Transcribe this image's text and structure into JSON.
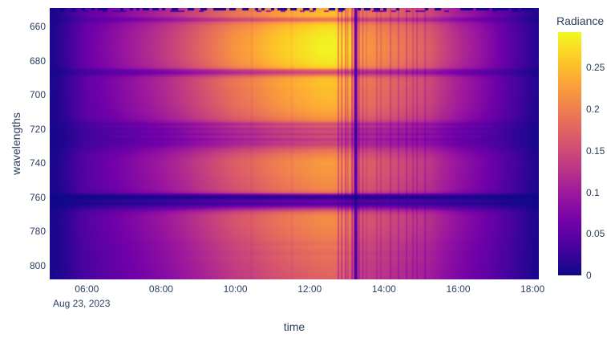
{
  "figure": {
    "background": "#ffffff",
    "font_color": "#2a3f5f"
  },
  "chart_data": {
    "type": "heatmap",
    "title": "",
    "xlabel": "time",
    "ylabel": "wavelengths",
    "x_date": "Aug 23, 2023",
    "z_label": "Radiance",
    "zmin": 0,
    "zmax": 0.293,
    "x_range_hours": [
      5.0,
      18.17
    ],
    "y_range_nm": [
      649,
      808
    ],
    "x_ticks": [
      {
        "hour": 6,
        "label": "06:00"
      },
      {
        "hour": 8,
        "label": "08:00"
      },
      {
        "hour": 10,
        "label": "10:00"
      },
      {
        "hour": 12,
        "label": "12:00"
      },
      {
        "hour": 14,
        "label": "14:00"
      },
      {
        "hour": 16,
        "label": "16:00"
      },
      {
        "hour": 18,
        "label": "18:00"
      }
    ],
    "y_ticks": [
      {
        "nm": 660,
        "label": "660"
      },
      {
        "nm": 680,
        "label": "680"
      },
      {
        "nm": 700,
        "label": "700"
      },
      {
        "nm": 720,
        "label": "720"
      },
      {
        "nm": 740,
        "label": "740"
      },
      {
        "nm": 760,
        "label": "760"
      },
      {
        "nm": 780,
        "label": "780"
      },
      {
        "nm": 800,
        "label": "800"
      }
    ],
    "colorbar_ticks": [
      {
        "value": 0,
        "label": "0"
      },
      {
        "value": 0.05,
        "label": "0.05"
      },
      {
        "value": 0.1,
        "label": "0.1"
      },
      {
        "value": 0.15,
        "label": "0.15"
      },
      {
        "value": 0.2,
        "label": "0.2"
      },
      {
        "value": 0.25,
        "label": "0.25"
      }
    ],
    "colorscale": [
      [
        0.0,
        "#0d0887"
      ],
      [
        0.1111,
        "#46039f"
      ],
      [
        0.2222,
        "#7201a8"
      ],
      [
        0.3333,
        "#9c179e"
      ],
      [
        0.4444,
        "#bd3786"
      ],
      [
        0.5556,
        "#d8576b"
      ],
      [
        0.6667,
        "#ed7953"
      ],
      [
        0.7778,
        "#fb9f3a"
      ],
      [
        0.8889,
        "#fdca26"
      ],
      [
        1.0,
        "#f0f921"
      ]
    ],
    "model": "z(t,wl) = diurnal_factor(t) * peak_spectrum(wl); narrow vertical dips are short drops in diurnal_factor, horizontal dark bands are absorption dips in peak_spectrum",
    "diurnal_factor": [
      [
        5.0,
        0.03
      ],
      [
        5.2,
        0.05
      ],
      [
        5.5,
        0.1
      ],
      [
        5.8,
        0.17
      ],
      [
        6.0,
        0.21
      ],
      [
        6.5,
        0.27
      ],
      [
        7.0,
        0.33
      ],
      [
        7.5,
        0.39
      ],
      [
        8.0,
        0.45
      ],
      [
        8.5,
        0.52
      ],
      [
        9.0,
        0.6
      ],
      [
        9.5,
        0.68
      ],
      [
        10.0,
        0.76
      ],
      [
        10.4,
        0.8
      ],
      [
        10.44,
        0.755
      ],
      [
        10.48,
        0.805
      ],
      [
        10.8,
        0.85
      ],
      [
        11.0,
        0.88
      ],
      [
        11.48,
        0.93
      ],
      [
        11.52,
        0.88
      ],
      [
        11.56,
        0.935
      ],
      [
        11.9,
        0.96
      ],
      [
        12.2,
        0.99
      ],
      [
        12.45,
        1.0
      ],
      [
        12.6,
        1.0
      ],
      [
        12.74,
        0.99
      ],
      [
        12.77,
        0.6
      ],
      [
        12.8,
        0.98
      ],
      [
        12.83,
        0.97
      ],
      [
        12.86,
        0.65
      ],
      [
        12.9,
        0.97
      ],
      [
        12.94,
        0.96
      ],
      [
        12.97,
        0.55
      ],
      [
        13.0,
        0.955
      ],
      [
        13.03,
        0.7
      ],
      [
        13.06,
        0.95
      ],
      [
        13.11,
        0.94
      ],
      [
        13.14,
        0.45
      ],
      [
        13.17,
        0.9
      ],
      [
        13.2,
        0.5
      ],
      [
        13.23,
        0.1
      ],
      [
        13.27,
        0.3
      ],
      [
        13.3,
        0.75
      ],
      [
        13.33,
        0.5
      ],
      [
        13.36,
        0.78
      ],
      [
        13.4,
        0.77
      ],
      [
        13.43,
        0.6
      ],
      [
        13.46,
        0.765
      ],
      [
        13.5,
        0.76
      ],
      [
        13.53,
        0.64
      ],
      [
        13.56,
        0.755
      ],
      [
        13.65,
        0.75
      ],
      [
        13.78,
        0.74
      ],
      [
        13.81,
        0.58
      ],
      [
        13.84,
        0.735
      ],
      [
        13.89,
        0.73
      ],
      [
        13.92,
        0.6
      ],
      [
        13.95,
        0.725
      ],
      [
        14.05,
        0.715
      ],
      [
        14.15,
        0.705
      ],
      [
        14.18,
        0.52
      ],
      [
        14.21,
        0.7
      ],
      [
        14.3,
        0.69
      ],
      [
        14.36,
        0.685
      ],
      [
        14.39,
        0.5
      ],
      [
        14.42,
        0.68
      ],
      [
        14.5,
        0.67
      ],
      [
        14.58,
        0.66
      ],
      [
        14.61,
        0.48
      ],
      [
        14.64,
        0.655
      ],
      [
        14.75,
        0.64
      ],
      [
        14.78,
        0.5
      ],
      [
        14.81,
        0.635
      ],
      [
        14.86,
        0.63
      ],
      [
        14.89,
        0.47
      ],
      [
        14.92,
        0.625
      ],
      [
        15.0,
        0.615
      ],
      [
        15.08,
        0.6
      ],
      [
        15.11,
        0.46
      ],
      [
        15.14,
        0.595
      ],
      [
        15.25,
        0.58
      ],
      [
        15.5,
        0.52
      ],
      [
        15.75,
        0.47
      ],
      [
        16.0,
        0.42
      ],
      [
        16.5,
        0.34
      ],
      [
        17.0,
        0.25
      ],
      [
        17.5,
        0.15
      ],
      [
        18.0,
        0.065
      ],
      [
        18.17,
        0.045
      ]
    ],
    "peak_spectrum": [
      [
        649,
        0.235
      ],
      [
        650.5,
        0.246
      ],
      [
        652.5,
        0.252
      ],
      [
        654,
        0.246
      ],
      [
        655,
        0.2
      ],
      [
        656.3,
        0.19
      ],
      [
        657.5,
        0.247
      ],
      [
        659,
        0.266
      ],
      [
        661,
        0.275
      ],
      [
        664,
        0.283
      ],
      [
        668,
        0.287
      ],
      [
        672,
        0.29
      ],
      [
        676,
        0.288
      ],
      [
        679,
        0.284
      ],
      [
        682,
        0.278
      ],
      [
        684,
        0.262
      ],
      [
        685.5,
        0.175
      ],
      [
        687,
        0.15
      ],
      [
        688.5,
        0.205
      ],
      [
        690,
        0.248
      ],
      [
        693,
        0.256
      ],
      [
        696,
        0.252
      ],
      [
        699,
        0.25
      ],
      [
        702,
        0.247
      ],
      [
        705,
        0.244
      ],
      [
        708,
        0.238
      ],
      [
        710,
        0.232
      ],
      [
        712,
        0.226
      ],
      [
        714,
        0.216
      ],
      [
        715.5,
        0.195
      ],
      [
        717,
        0.15
      ],
      [
        718.5,
        0.17
      ],
      [
        720,
        0.14
      ],
      [
        721.5,
        0.16
      ],
      [
        723,
        0.135
      ],
      [
        724.5,
        0.158
      ],
      [
        726,
        0.13
      ],
      [
        727.5,
        0.15
      ],
      [
        729,
        0.145
      ],
      [
        730.5,
        0.165
      ],
      [
        732,
        0.185
      ],
      [
        734,
        0.2
      ],
      [
        736,
        0.212
      ],
      [
        738,
        0.22
      ],
      [
        740,
        0.225
      ],
      [
        743,
        0.222
      ],
      [
        746,
        0.22
      ],
      [
        749,
        0.216
      ],
      [
        752,
        0.212
      ],
      [
        755,
        0.208
      ],
      [
        757,
        0.19
      ],
      [
        758,
        0.11
      ],
      [
        759,
        0.03
      ],
      [
        760,
        0.015
      ],
      [
        761.3,
        0.045
      ],
      [
        762.3,
        0.07
      ],
      [
        763.3,
        0.038
      ],
      [
        764.5,
        0.06
      ],
      [
        766,
        0.11
      ],
      [
        767.5,
        0.16
      ],
      [
        769,
        0.195
      ],
      [
        771,
        0.21
      ],
      [
        773,
        0.212
      ],
      [
        776,
        0.21
      ],
      [
        779,
        0.206
      ],
      [
        782,
        0.203
      ],
      [
        785,
        0.198
      ],
      [
        787,
        0.19
      ],
      [
        789,
        0.194
      ],
      [
        791,
        0.188
      ],
      [
        793,
        0.183
      ],
      [
        795,
        0.188
      ],
      [
        797,
        0.184
      ],
      [
        799,
        0.182
      ],
      [
        801,
        0.18
      ],
      [
        803,
        0.178
      ],
      [
        805,
        0.176
      ],
      [
        808,
        0.173
      ]
    ],
    "top_edge_artifact": {
      "wavelengths_nm": [
        649,
        651.4
      ],
      "description": "intermittent dashed dropouts to near zero along the first rows"
    }
  }
}
